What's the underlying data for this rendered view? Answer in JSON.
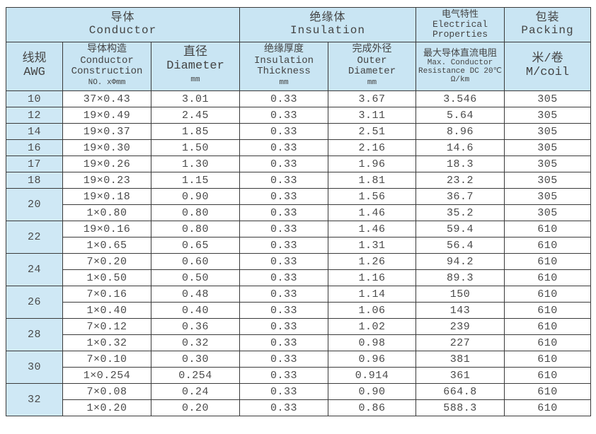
{
  "header": {
    "conductor": {
      "zh": "导体",
      "en": "Conductor"
    },
    "insulation": {
      "zh": "绝缘体",
      "en": "Insulation"
    },
    "electrical": {
      "zh": "电气特性",
      "en1": "Electrical",
      "en2": "Properties"
    },
    "packing": {
      "zh": "包装",
      "en": "Packing"
    },
    "awg": {
      "zh": "线规",
      "en": "AWG"
    },
    "construction": {
      "zh": "导体构造",
      "en1": "Conductor",
      "en2": "Construction",
      "unit": "NO. xΦmm"
    },
    "diameter": {
      "zh": "直径",
      "en": "Diameter",
      "unit": "mm"
    },
    "thickness": {
      "zh": "绝缘厚度",
      "en1": "Insulation",
      "en2": "Thickness",
      "unit": "mm"
    },
    "outer": {
      "zh": "完成外径",
      "en1": "Outer",
      "en2": "Diameter",
      "unit": "mm"
    },
    "resistance": {
      "zh": "最大导体直流电阻",
      "en1": "Max. Conductor",
      "en2": "Resistance DC 20℃",
      "unit": "Ω/km"
    },
    "coil": {
      "zh": "米/卷",
      "en": "M/coil"
    }
  },
  "groups": [
    {
      "awg": "10",
      "rows": [
        [
          "37×0.43",
          "3.01",
          "0.33",
          "3.67",
          "3.546",
          "305"
        ]
      ]
    },
    {
      "awg": "12",
      "rows": [
        [
          "19×0.49",
          "2.45",
          "0.33",
          "3.11",
          "5.64",
          "305"
        ]
      ]
    },
    {
      "awg": "14",
      "rows": [
        [
          "19×0.37",
          "1.85",
          "0.33",
          "2.51",
          "8.96",
          "305"
        ]
      ]
    },
    {
      "awg": "16",
      "rows": [
        [
          "19×0.30",
          "1.50",
          "0.33",
          "2.16",
          "14.6",
          "305"
        ]
      ]
    },
    {
      "awg": "17",
      "rows": [
        [
          "19×0.26",
          "1.30",
          "0.33",
          "1.96",
          "18.3",
          "305"
        ]
      ]
    },
    {
      "awg": "18",
      "rows": [
        [
          "19×0.23",
          "1.15",
          "0.33",
          "1.81",
          "23.2",
          "305"
        ]
      ]
    },
    {
      "awg": "20",
      "rows": [
        [
          "19×0.18",
          "0.90",
          "0.33",
          "1.56",
          "36.7",
          "305"
        ],
        [
          "1×0.80",
          "0.80",
          "0.33",
          "1.46",
          "35.2",
          "305"
        ]
      ]
    },
    {
      "awg": "22",
      "rows": [
        [
          "19×0.16",
          "0.80",
          "0.33",
          "1.46",
          "59.4",
          "610"
        ],
        [
          "1×0.65",
          "0.65",
          "0.33",
          "1.31",
          "56.4",
          "610"
        ]
      ]
    },
    {
      "awg": "24",
      "rows": [
        [
          "7×0.20",
          "0.60",
          "0.33",
          "1.26",
          "94.2",
          "610"
        ],
        [
          "1×0.50",
          "0.50",
          "0.33",
          "1.16",
          "89.3",
          "610"
        ]
      ]
    },
    {
      "awg": "26",
      "rows": [
        [
          "7×0.16",
          "0.48",
          "0.33",
          "1.14",
          "150",
          "610"
        ],
        [
          "1×0.40",
          "0.40",
          "0.33",
          "1.06",
          "143",
          "610"
        ]
      ]
    },
    {
      "awg": "28",
      "rows": [
        [
          "7×0.12",
          "0.36",
          "0.33",
          "1.02",
          "239",
          "610"
        ],
        [
          "1×0.32",
          "0.32",
          "0.33",
          "0.98",
          "227",
          "610"
        ]
      ]
    },
    {
      "awg": "30",
      "rows": [
        [
          "7×0.10",
          "0.30",
          "0.33",
          "0.96",
          "381",
          "610"
        ],
        [
          "1×0.254",
          "0.254",
          "0.33",
          "0.914",
          "361",
          "610"
        ]
      ]
    },
    {
      "awg": "32",
      "rows": [
        [
          "7×0.08",
          "0.24",
          "0.33",
          "0.90",
          "664.8",
          "610"
        ],
        [
          "1×0.20",
          "0.20",
          "0.33",
          "0.86",
          "588.3",
          "610"
        ]
      ]
    }
  ]
}
